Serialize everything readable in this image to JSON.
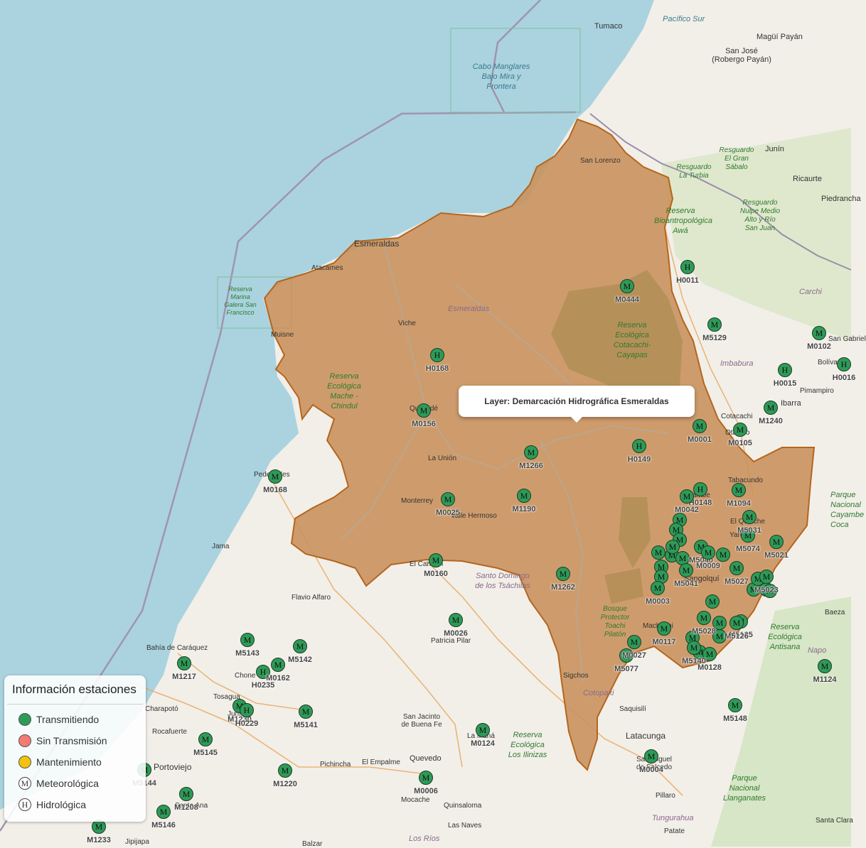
{
  "colors": {
    "transmitting": "#2e9a57",
    "no_transmission": "#f47b72",
    "maintenance": "#f4c20d",
    "basin": "#c8915a",
    "basin_border": "#b5651d",
    "sea": "#aad3df"
  },
  "tooltip": {
    "text": "Layer: Demarcación Hidrográfica Esmeraldas"
  },
  "legend": {
    "title": "Información estaciones",
    "items": [
      {
        "label": "Transmitiendo",
        "kind": "dot",
        "color": "#2e9a57"
      },
      {
        "label": "Sin Transmisión",
        "kind": "dot",
        "color": "#f47b72"
      },
      {
        "label": "Mantenimiento",
        "kind": "dot",
        "color": "#f4c20d"
      },
      {
        "label": "Meteorológica",
        "kind": "sym",
        "symbol": "M"
      },
      {
        "label": "Hidrológica",
        "kind": "sym",
        "symbol": "H"
      }
    ]
  },
  "places": [
    "Tumaco",
    "Pacífico Sur",
    "Magüí Payán",
    "San José (Robergo Payán)",
    "San Lorenzo",
    "Junín",
    "Ricaurte",
    "Piedrancha",
    "Esmeraldas",
    "Atacames",
    "Muisne",
    "Viche",
    "Quinindé",
    "La Unión",
    "Monterrey",
    "Valle Hermoso",
    "El Carmen",
    "Pedernales",
    "Jama",
    "Flavio Alfaro",
    "Bahía de Caráquez",
    "Tosagua",
    "Junín",
    "Chone",
    "Charapotó",
    "Rocafuerte",
    "Portoviejo",
    "Santa Ana",
    "Jipijapa",
    "San Jacinto de Buena Fe",
    "Patricia Pilar",
    "Pichincha",
    "El Empalme",
    "Quevedo",
    "Mocache",
    "Quinsaloma",
    "Las Naves",
    "Balzar",
    "Sigchos",
    "Saquisilí",
    "Latacunga",
    "San Miguel de Salcedo",
    "Pillaro",
    "Patate",
    "Tabacundo",
    "Cotacachi",
    "Otavalo",
    "Ibarra",
    "Pimampiro",
    "Bolívar",
    "San Gabriel",
    "Yaruquí",
    "El Quinche",
    "Sangolquí",
    "Machachi",
    "Baeza",
    "Santa Clara",
    "La Maná",
    "Cayambe",
    "Imbabura",
    "Carchi",
    "Cotopaxi",
    "Napo",
    "Tungurahua",
    "Los Ríos",
    "Esmeraldas",
    "Santo Domingo de los Tsáchilas"
  ],
  "protected_areas": [
    "Cabo Manglares Bajo Mira y Frontera",
    "Reserva Marina Galera San Francisco",
    "Reserva Ecológica Mache - Chindul",
    "Reserva Ecológica Cotacachi-Cayapas",
    "Reserva Bioantropológica Awá",
    "Resguardo El Gran Sábalo",
    "Resguardo La Turbia",
    "Resguardo Nulpe Medio Alto y Río San Juan",
    "Bosque Protector Toachi Pilatón",
    "Reserva Ecológica Los Ilinizas",
    "Reserva Ecológica Antisana",
    "Parque Nacional Llanganates",
    "Parque Nacional Cayambe Coca"
  ],
  "stations": [
    {
      "code": "H0011",
      "type": "H"
    },
    {
      "code": "M0444",
      "type": "M"
    },
    {
      "code": "M5129",
      "type": "M"
    },
    {
      "code": "M0102",
      "type": "M"
    },
    {
      "code": "H0015",
      "type": "H"
    },
    {
      "code": "H0168",
      "type": "H"
    },
    {
      "code": "M0156",
      "type": "M"
    },
    {
      "code": "M1240",
      "type": "M"
    },
    {
      "code": "M0001",
      "type": "M"
    },
    {
      "code": "M0105",
      "type": "M"
    },
    {
      "code": "M1266",
      "type": "M"
    },
    {
      "code": "H0149",
      "type": "H"
    },
    {
      "code": "M0168",
      "type": "M"
    },
    {
      "code": "M0025",
      "type": "M"
    },
    {
      "code": "M1190",
      "type": "M"
    },
    {
      "code": "H0148",
      "type": "H"
    },
    {
      "code": "M1094",
      "type": "M"
    },
    {
      "code": "M0160",
      "type": "M"
    },
    {
      "code": "M1262",
      "type": "M"
    },
    {
      "code": "M5074",
      "type": "M"
    },
    {
      "code": "M5021",
      "type": "M"
    },
    {
      "code": "M0003",
      "type": "M"
    },
    {
      "code": "M5041",
      "type": "M"
    },
    {
      "code": "M0026",
      "type": "M"
    },
    {
      "code": "M0117",
      "type": "M"
    },
    {
      "code": "M5077",
      "type": "M"
    },
    {
      "code": "M5028",
      "type": "M"
    },
    {
      "code": "M5143",
      "type": "M"
    },
    {
      "code": "M5142",
      "type": "M"
    },
    {
      "code": "M1217",
      "type": "M"
    },
    {
      "code": "H0235",
      "type": "H"
    },
    {
      "code": "M0162",
      "type": "M"
    },
    {
      "code": "M1230",
      "type": "M"
    },
    {
      "code": "H0229",
      "type": "H"
    },
    {
      "code": "M5141",
      "type": "M"
    },
    {
      "code": "M5145",
      "type": "M"
    },
    {
      "code": "M0124",
      "type": "M"
    },
    {
      "code": "M5148",
      "type": "M"
    },
    {
      "code": "M1124",
      "type": "M"
    },
    {
      "code": "M5144",
      "type": "M"
    },
    {
      "code": "M1220",
      "type": "M"
    },
    {
      "code": "M0006",
      "type": "M"
    },
    {
      "code": "M0004",
      "type": "M"
    },
    {
      "code": "M1208",
      "type": "M"
    },
    {
      "code": "M5146",
      "type": "M"
    },
    {
      "code": "M1233",
      "type": "M"
    },
    {
      "code": "M0042",
      "type": "M"
    },
    {
      "code": "M5040",
      "type": "M"
    },
    {
      "code": "M0009",
      "type": "M"
    },
    {
      "code": "M5027",
      "type": "M"
    },
    {
      "code": "M5023",
      "type": "M"
    },
    {
      "code": "M5125",
      "type": "M"
    },
    {
      "code": "M0128",
      "type": "M"
    },
    {
      "code": "M5126",
      "type": "M"
    },
    {
      "code": "M5031",
      "type": "M"
    },
    {
      "code": "M0027",
      "type": "M"
    },
    {
      "code": "M5140",
      "type": "M"
    },
    {
      "code": "H0016",
      "type": "H"
    }
  ]
}
